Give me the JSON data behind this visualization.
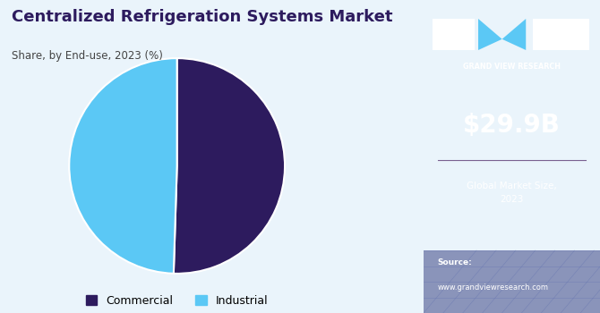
{
  "title": "Centralized Refrigeration Systems Market",
  "subtitle": "Share, by End-use, 2023 (%)",
  "pie_values": [
    50.5,
    49.5
  ],
  "pie_labels": [
    "Commercial",
    "Industrial"
  ],
  "pie_colors": [
    "#2d1b5e",
    "#5bc8f5"
  ],
  "pie_startangle": 90,
  "bg_color": "#eaf4fb",
  "right_panel_bg": "#3b1f6e",
  "right_panel_text_color": "#ffffff",
  "market_size_value": "$29.9B",
  "market_size_label": "Global Market Size,\n2023",
  "source_label": "Source:",
  "source_url": "www.grandviewresearch.com",
  "title_color": "#2d1b5e",
  "subtitle_color": "#444444",
  "legend_colors": [
    "#2d1b5e",
    "#5bc8f5"
  ],
  "legend_labels": [
    "Commercial",
    "Industrial"
  ],
  "gvr_text": "GRAND VIEW RESEARCH"
}
